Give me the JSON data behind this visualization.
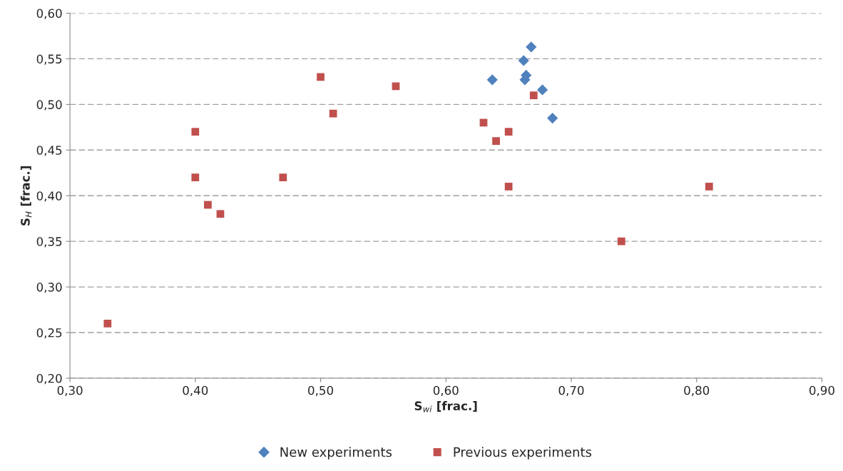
{
  "chart_data": {
    "type": "scatter",
    "xlabel": "S$_{wi}$ [frac.]",
    "ylabel": "S$_{H}$ [frac.]",
    "xlim": [
      0.3,
      0.9
    ],
    "ylim": [
      0.2,
      0.6
    ],
    "xticks": [
      {
        "value": 0.3,
        "label": "0,30"
      },
      {
        "value": 0.4,
        "label": "0,40"
      },
      {
        "value": 0.5,
        "label": "0,50"
      },
      {
        "value": 0.6,
        "label": "0,60"
      },
      {
        "value": 0.7,
        "label": "0,70"
      },
      {
        "value": 0.8,
        "label": "0,80"
      },
      {
        "value": 0.9,
        "label": "0,90"
      }
    ],
    "yticks": [
      {
        "value": 0.2,
        "label": "0,20"
      },
      {
        "value": 0.25,
        "label": "0,25"
      },
      {
        "value": 0.3,
        "label": "0,30"
      },
      {
        "value": 0.35,
        "label": "0,35"
      },
      {
        "value": 0.4,
        "label": "0,40"
      },
      {
        "value": 0.45,
        "label": "0,45"
      },
      {
        "value": 0.5,
        "label": "0,50"
      },
      {
        "value": 0.55,
        "label": "0,55"
      },
      {
        "value": 0.6,
        "label": "0,60"
      }
    ],
    "grid": "y",
    "legend": "bottom",
    "series": [
      {
        "name": "New experiments",
        "color": "#4f81bd",
        "marker": "diamond",
        "x": [
          0.668,
          0.662,
          0.664,
          0.637,
          0.663,
          0.677,
          0.685
        ],
        "values": [
          0.563,
          0.548,
          0.532,
          0.527,
          0.527,
          0.516,
          0.485
        ]
      },
      {
        "name": "Previous experiments",
        "color": "#c0504d",
        "marker": "square",
        "x": [
          0.33,
          0.4,
          0.4,
          0.41,
          0.42,
          0.47,
          0.5,
          0.51,
          0.56,
          0.63,
          0.64,
          0.65,
          0.65,
          0.67,
          0.74,
          0.81
        ],
        "values": [
          0.26,
          0.47,
          0.42,
          0.39,
          0.38,
          0.42,
          0.53,
          0.49,
          0.52,
          0.48,
          0.46,
          0.47,
          0.41,
          0.51,
          0.35,
          0.41
        ]
      }
    ]
  }
}
